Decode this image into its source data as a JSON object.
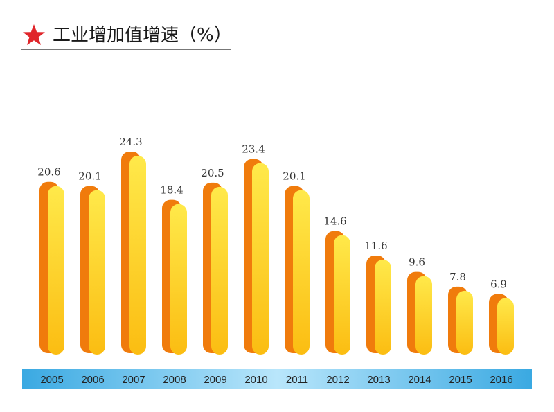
{
  "title": "工业增加值增速（%）",
  "colors": {
    "star": "#e0262b",
    "bar_front_top": "#ffe94a",
    "bar_front_bottom": "#fbbd12",
    "bar_side": "#f07b0c",
    "axis_band": "#3fb0e6"
  },
  "chart_data": {
    "type": "bar",
    "title": "工业增加值增速（%）",
    "xlabel": "",
    "ylabel": "",
    "categories": [
      "2005",
      "2006",
      "2007",
      "2008",
      "2009",
      "2010",
      "2011",
      "2012",
      "2013",
      "2014",
      "2015",
      "2016"
    ],
    "values": [
      20.6,
      20.1,
      24.3,
      18.4,
      20.5,
      23.4,
      20.1,
      14.6,
      11.6,
      9.6,
      7.8,
      6.9
    ],
    "value_labels": [
      "20.6",
      "20.1",
      "24.3",
      "18.4",
      "20.5",
      "23.4",
      "20.1",
      "14.6",
      "11.6",
      "9.6",
      "7.8",
      "6.9"
    ],
    "ylim": [
      0,
      24.3
    ],
    "grid": false,
    "legend": "none"
  }
}
